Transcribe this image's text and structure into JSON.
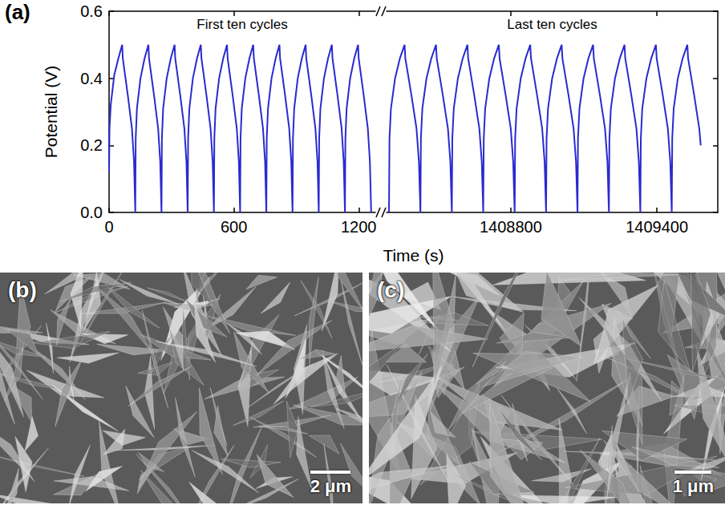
{
  "chart_data": {
    "type": "line",
    "panel": "(a)",
    "xlabel": "Time (s)",
    "ylabel": "Potential (V)",
    "ylim": [
      0,
      0.6
    ],
    "yticks": [
      {
        "value": 0,
        "label": "0.0"
      },
      0.2,
      0.4,
      0.6
    ],
    "color": "#2a2ad0",
    "segments": [
      {
        "annotation": "First ten cycles",
        "xlim": [
          0,
          1280
        ],
        "xticks": [
          0,
          600,
          1200
        ],
        "x": [
          0,
          2,
          8,
          25,
          45,
          63,
          66,
          90,
          110,
          120,
          126,
          128,
          134,
          151,
          171,
          189,
          192,
          216,
          236,
          246,
          252,
          254,
          260,
          277,
          297,
          315,
          318,
          342,
          362,
          372,
          378,
          380,
          386,
          403,
          423,
          441,
          444,
          468,
          488,
          498,
          504,
          506,
          512,
          529,
          549,
          567,
          570,
          594,
          614,
          624,
          630,
          632,
          638,
          655,
          675,
          693,
          696,
          720,
          740,
          750,
          756,
          758,
          764,
          781,
          801,
          819,
          822,
          846,
          866,
          876,
          882,
          884,
          890,
          907,
          927,
          945,
          948,
          972,
          992,
          1002,
          1008,
          1010,
          1016,
          1033,
          1053,
          1071,
          1074,
          1098,
          1118,
          1128,
          1134,
          1136,
          1142,
          1159,
          1179,
          1197,
          1200,
          1224,
          1244,
          1254,
          1260
        ],
        "values": [
          0.12,
          0.25,
          0.32,
          0.41,
          0.46,
          0.5,
          0.46,
          0.35,
          0.25,
          0.15,
          0.0,
          0.22,
          0.31,
          0.4,
          0.46,
          0.5,
          0.46,
          0.35,
          0.25,
          0.15,
          0.0,
          0.22,
          0.31,
          0.4,
          0.46,
          0.5,
          0.46,
          0.35,
          0.25,
          0.15,
          0.0,
          0.22,
          0.31,
          0.4,
          0.46,
          0.5,
          0.46,
          0.35,
          0.25,
          0.15,
          0.0,
          0.22,
          0.31,
          0.4,
          0.46,
          0.5,
          0.46,
          0.35,
          0.25,
          0.15,
          0.0,
          0.22,
          0.31,
          0.4,
          0.46,
          0.5,
          0.46,
          0.35,
          0.25,
          0.15,
          0.0,
          0.22,
          0.31,
          0.4,
          0.46,
          0.5,
          0.46,
          0.35,
          0.25,
          0.15,
          0.0,
          0.22,
          0.31,
          0.4,
          0.46,
          0.5,
          0.46,
          0.35,
          0.25,
          0.15,
          0.0,
          0.22,
          0.31,
          0.4,
          0.46,
          0.5,
          0.46,
          0.35,
          0.25,
          0.15,
          0.0,
          0.22,
          0.31,
          0.4,
          0.46,
          0.5,
          0.46,
          0.35,
          0.25,
          0.15,
          0.0
        ]
      },
      {
        "annotation": "Last ten cycles",
        "xlim": [
          1408290,
          1409650
        ],
        "xticks": [
          1408800,
          1409400
        ],
        "x": [
          1408300,
          1408302,
          1408308,
          1408325,
          1408345,
          1408364,
          1408367,
          1408392,
          1408413,
          1408423,
          1408429,
          1408431,
          1408437,
          1408454,
          1408474,
          1408493,
          1408496,
          1408521,
          1408542,
          1408552,
          1408558,
          1408560,
          1408566,
          1408583,
          1408603,
          1408622,
          1408625,
          1408650,
          1408671,
          1408681,
          1408687,
          1408689,
          1408695,
          1408712,
          1408732,
          1408751,
          1408754,
          1408779,
          1408800,
          1408810,
          1408816,
          1408818,
          1408824,
          1408841,
          1408861,
          1408880,
          1408883,
          1408908,
          1408929,
          1408939,
          1408945,
          1408947,
          1408953,
          1408970,
          1408990,
          1409009,
          1409012,
          1409037,
          1409058,
          1409068,
          1409074,
          1409076,
          1409082,
          1409099,
          1409119,
          1409138,
          1409141,
          1409166,
          1409187,
          1409197,
          1409203,
          1409205,
          1409211,
          1409228,
          1409248,
          1409267,
          1409270,
          1409295,
          1409316,
          1409326,
          1409332,
          1409334,
          1409340,
          1409357,
          1409377,
          1409396,
          1409399,
          1409424,
          1409445,
          1409455,
          1409461,
          1409463,
          1409469,
          1409486,
          1409506,
          1409525,
          1409528,
          1409553,
          1409574,
          1409580
        ],
        "values": [
          0.0,
          0.22,
          0.31,
          0.4,
          0.46,
          0.5,
          0.46,
          0.35,
          0.25,
          0.15,
          0.0,
          0.22,
          0.31,
          0.4,
          0.46,
          0.5,
          0.46,
          0.35,
          0.25,
          0.15,
          0.0,
          0.22,
          0.31,
          0.4,
          0.46,
          0.5,
          0.46,
          0.35,
          0.25,
          0.15,
          0.0,
          0.22,
          0.31,
          0.4,
          0.46,
          0.5,
          0.46,
          0.35,
          0.25,
          0.15,
          0.0,
          0.22,
          0.31,
          0.4,
          0.46,
          0.5,
          0.46,
          0.35,
          0.25,
          0.15,
          0.0,
          0.22,
          0.31,
          0.4,
          0.46,
          0.5,
          0.46,
          0.35,
          0.25,
          0.15,
          0.0,
          0.22,
          0.31,
          0.4,
          0.46,
          0.5,
          0.46,
          0.35,
          0.25,
          0.15,
          0.0,
          0.22,
          0.31,
          0.4,
          0.46,
          0.5,
          0.46,
          0.35,
          0.25,
          0.15,
          0.0,
          0.22,
          0.31,
          0.4,
          0.46,
          0.5,
          0.46,
          0.35,
          0.25,
          0.15,
          0.0,
          0.22,
          0.31,
          0.4,
          0.46,
          0.5,
          0.46,
          0.35,
          0.25,
          0.2
        ]
      }
    ]
  },
  "images": [
    {
      "panel": "(b)",
      "scale_bar": "2 μm"
    },
    {
      "panel": "(c)",
      "scale_bar": "1 μm"
    }
  ]
}
